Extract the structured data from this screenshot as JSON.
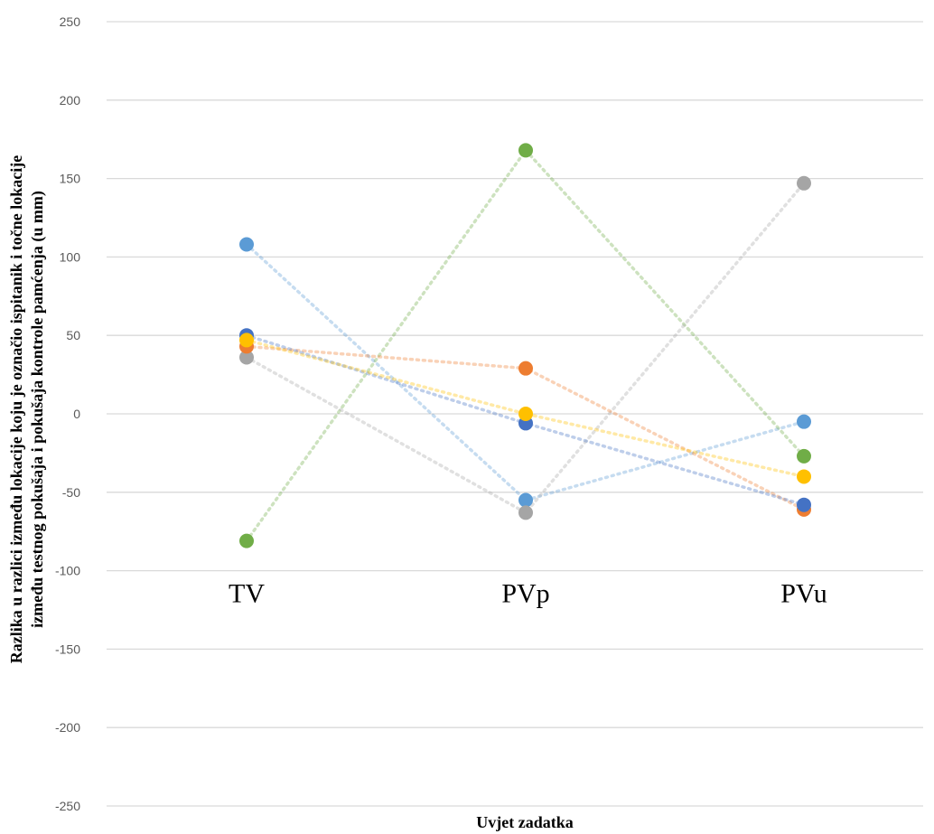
{
  "chart_data": {
    "type": "line",
    "categories": [
      "TV",
      "PVp",
      "PVu"
    ],
    "ylim": [
      -250,
      250
    ],
    "yticks": [
      250,
      200,
      150,
      100,
      50,
      0,
      -50,
      -100,
      -150,
      -200,
      -250
    ],
    "ylabel_line1": "Razlika u razlici između lokacije koju je označio ispitanik i točne lokacije",
    "ylabel_line2": "između testnog pokušaja i pokušaja kontrole pamćenja (u mm)",
    "xlabel": "Uvjet zadatka",
    "grid": true,
    "line_style": "dotted",
    "series": [
      {
        "color": "#5b9bd5",
        "values": [
          108,
          -55,
          -5
        ]
      },
      {
        "color": "#70ad47",
        "values": [
          -81,
          168,
          -27
        ]
      },
      {
        "color": "#a5a5a5",
        "values": [
          36,
          -63,
          147
        ]
      },
      {
        "color": "#ed7d31",
        "values": [
          43,
          29,
          -61
        ]
      },
      {
        "color": "#4472c4",
        "values": [
          50,
          -6,
          -58
        ]
      },
      {
        "color": "#ffc000",
        "values": [
          47,
          0,
          -40
        ]
      }
    ]
  }
}
